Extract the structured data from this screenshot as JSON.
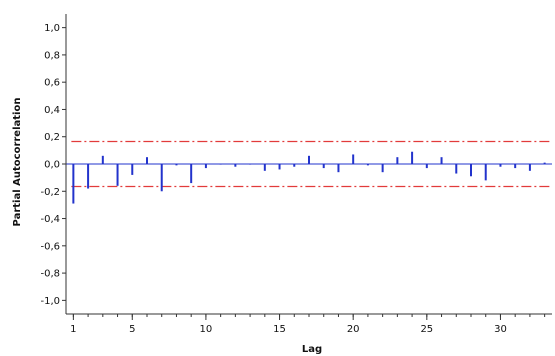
{
  "chart_data": {
    "type": "bar",
    "subtype": "partial-autocorrelation",
    "title": "",
    "xlabel": "Lag",
    "ylabel": "Partial Autocorrelation",
    "xlim": [
      0.5,
      33.5
    ],
    "ylim": [
      -1.1,
      1.1
    ],
    "x_ticks": [
      1,
      5,
      10,
      15,
      20,
      25,
      30
    ],
    "x_tick_labels": [
      "1",
      "5",
      "10",
      "15",
      "20",
      "25",
      "30"
    ],
    "y_ticks": [
      1.0,
      0.8,
      0.6,
      0.4,
      0.2,
      0.0,
      -0.2,
      -0.4,
      -0.6,
      -0.8,
      -1.0
    ],
    "y_tick_labels": [
      "1,0",
      "0,8",
      "0,6",
      "0,4",
      "0,2",
      "0,0",
      "-0,2",
      "-0,4",
      "-0,6",
      "-0,8",
      "-1,0"
    ],
    "grid": false,
    "lags": [
      1,
      2,
      3,
      4,
      5,
      6,
      7,
      8,
      9,
      10,
      11,
      12,
      13,
      14,
      15,
      16,
      17,
      18,
      19,
      20,
      21,
      22,
      23,
      24,
      25,
      26,
      27,
      28,
      29,
      30,
      31,
      32,
      33
    ],
    "pacf": [
      -0.29,
      -0.18,
      0.06,
      -0.16,
      -0.08,
      0.05,
      -0.2,
      -0.01,
      -0.14,
      -0.03,
      0.0,
      -0.02,
      0.0,
      -0.05,
      -0.04,
      -0.02,
      0.06,
      -0.03,
      -0.06,
      0.07,
      -0.01,
      -0.06,
      0.05,
      0.09,
      -0.03,
      0.05,
      -0.07,
      -0.09,
      -0.12,
      -0.02,
      -0.03,
      -0.05,
      0.01
    ],
    "upper_limit": 0.165,
    "lower_limit": -0.165,
    "colors": {
      "bars": "#2233cc",
      "zero_line": "#2233cc",
      "limits": "#e23b3b",
      "axes": "#333333",
      "background": "#ffffff"
    }
  }
}
